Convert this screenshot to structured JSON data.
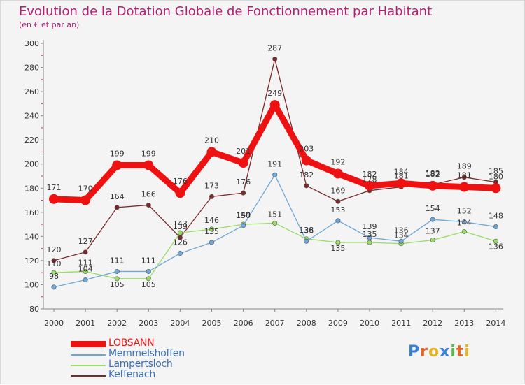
{
  "header": {
    "title": "Evolution de la Dotation Globale de Fonctionnement par Habitant",
    "subtitle": "(en € et par an)"
  },
  "logo": {
    "letters": [
      "P",
      "r",
      "o",
      "x",
      "i",
      "t",
      "i"
    ],
    "colors": [
      "#3b7fd8",
      "#e0652a",
      "#e0b422",
      "#3b7fd8",
      "#5bb84c",
      "#e0652a",
      "#e0b422"
    ]
  },
  "chart_data": {
    "type": "line",
    "x": [
      "2000",
      "2001",
      "2002",
      "2003",
      "2004",
      "2005",
      "2006",
      "2007",
      "2008",
      "2009",
      "2010",
      "2011",
      "2012",
      "2013",
      "2014"
    ],
    "ylim": [
      80,
      300
    ],
    "yticks": [
      "80",
      "100",
      "120",
      "140",
      "160",
      "180",
      "200",
      "220",
      "240",
      "260",
      "280",
      "300"
    ],
    "grid": false,
    "legend_position": "bottom-left",
    "series": [
      {
        "name": "LOBSANN",
        "color": "#ee1111",
        "highlight": true,
        "values": [
          171,
          170,
          199,
          199,
          176,
          210,
          201,
          249,
          203,
          192,
          182,
          184,
          182,
          181,
          180
        ]
      },
      {
        "name": "Memmelshoffen",
        "color": "#6ea8d8",
        "values": [
          98,
          104,
          111,
          111,
          126,
          135,
          149,
          191,
          136,
          153,
          139,
          136,
          154,
          152,
          148
        ]
      },
      {
        "name": "Lampertsloch",
        "color": "#99dd66",
        "values": [
          110,
          111,
          105,
          105,
          143,
          146,
          150,
          151,
          138,
          135,
          135,
          134,
          137,
          144,
          136
        ]
      },
      {
        "name": "Keffenach",
        "color": "#7a2a2a",
        "values": [
          120,
          127,
          164,
          166,
          139,
          173,
          176,
          287,
          182,
          169,
          178,
          181,
          183,
          189,
          185
        ]
      }
    ]
  }
}
